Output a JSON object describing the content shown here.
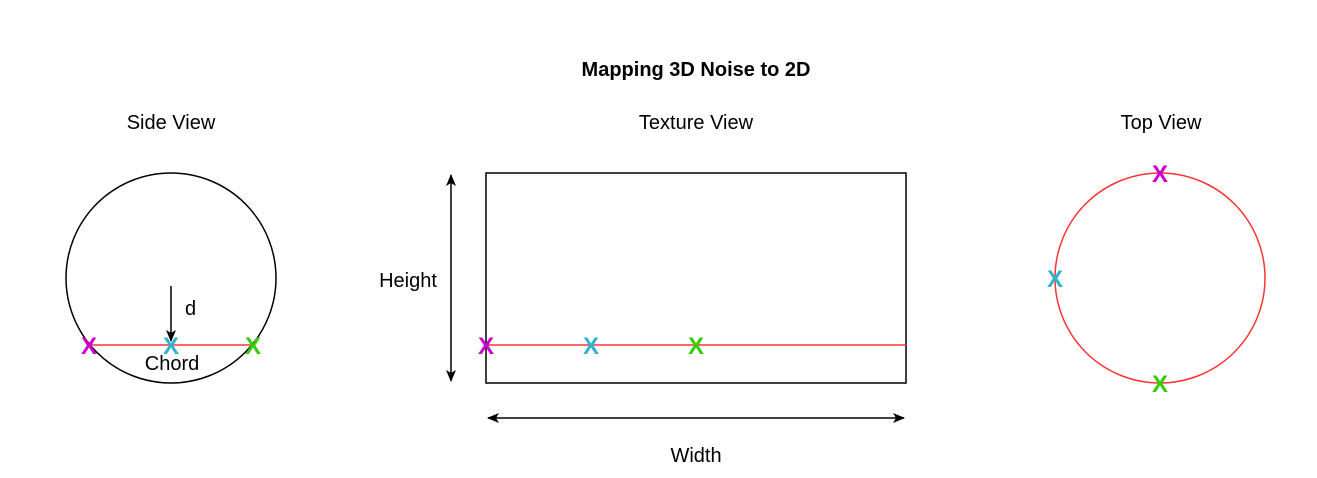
{
  "title": "Mapping 3D Noise to 2D",
  "side_view": {
    "heading": "Side View",
    "depth_label": "d",
    "chord_label": "Chord"
  },
  "texture_view": {
    "heading": "Texture View",
    "height_label": "Height",
    "width_label": "Width"
  },
  "top_view": {
    "heading": "Top View"
  },
  "marker_glyph": "X",
  "colors": {
    "outline": "#000000",
    "chord_line": "#ff3333",
    "marker_magenta": "#cc00cc",
    "marker_cyan": "#33b2cc",
    "marker_green": "#33cc00"
  }
}
